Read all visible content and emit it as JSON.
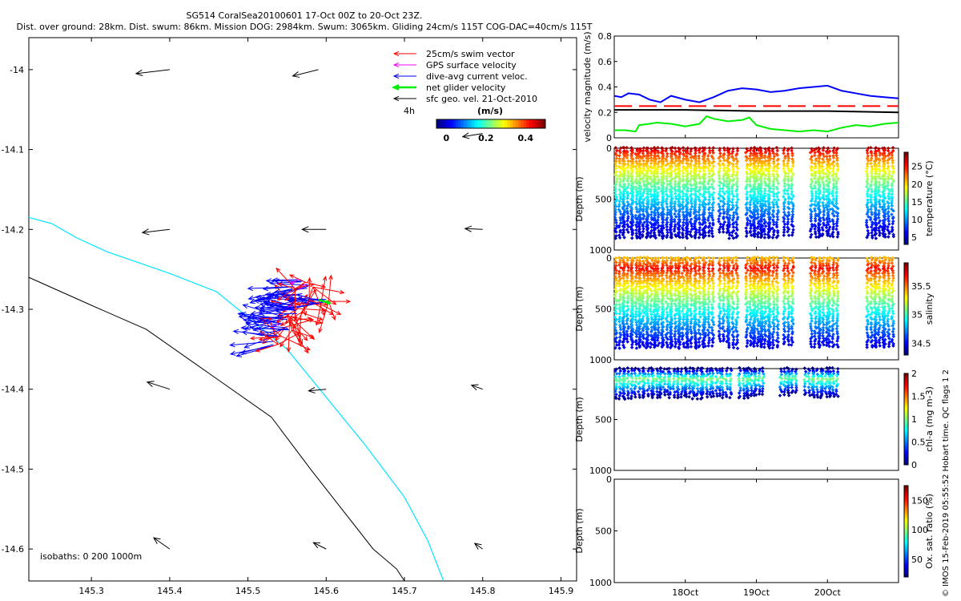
{
  "title": {
    "line1": "SG514 CoralSea20100601 17-Oct 00Z to 20-Oct 23Z.",
    "line2": "Dist. over ground: 28km. Dist. swum: 86km. Mission DOG: 2984km. Swum: 3065km. Gliding 24cm/s 115T COG-DAC=40cm/s 115T"
  },
  "side_note": "© IMOS 15-Feb-2019 05:55:52 Hobart time. QC flags 1  2",
  "colors": {
    "swim": "#ff0000",
    "gps": "#ff00ff",
    "dac": "#0000ff",
    "net": "#00ee00",
    "geo": "#000000",
    "isobath_shallow": "#00e5ff",
    "isobath_deep": "#000000",
    "dog_dash": "#ff0000"
  },
  "chart_data": [
    {
      "type": "map-vectors",
      "name": "main-map",
      "xlim": [
        145.22,
        145.92
      ],
      "ylim": [
        -14.64,
        -13.96
      ],
      "xticks": [
        145.3,
        145.4,
        145.5,
        145.6,
        145.7,
        145.8,
        145.9
      ],
      "yticks": [
        -14.0,
        -14.1,
        -14.2,
        -14.3,
        -14.4,
        -14.5,
        -14.6
      ],
      "xticklabels": [
        "145.3",
        "145.4",
        "145.5",
        "145.6",
        "145.7",
        "145.8",
        "145.9"
      ],
      "yticklabels": [
        "-14",
        "-14.1",
        "-14.2",
        "-14.3",
        "-14.4",
        "-14.5",
        "-14.6"
      ],
      "legend": [
        {
          "label": "25cm/s swim vector",
          "color_key": "swim"
        },
        {
          "label": "GPS surface velocity",
          "color_key": "gps"
        },
        {
          "label": "dive-avg current veloc.",
          "color_key": "dac"
        },
        {
          "label": "net glider velocity",
          "color_key": "net"
        },
        {
          "label": "sfc geo. vel. 21-Oct-2010",
          "color_key": "geo"
        }
      ],
      "interval_label": "4h",
      "colorbar": {
        "label": "(m/s)",
        "ticks": [
          0,
          0.2,
          0.4
        ],
        "ticklabels": [
          "0",
          "0.2",
          "0.4"
        ],
        "range": [
          -0.05,
          0.5
        ]
      },
      "isobaths": {
        "label": "isobaths: 0   200  1000m",
        "shallow": {
          "lon": [
            145.22,
            145.25,
            145.28,
            145.32,
            145.4,
            145.46,
            145.5,
            145.55,
            145.6,
            145.65,
            145.7,
            145.73,
            145.75
          ],
          "lat": [
            -14.185,
            -14.193,
            -14.21,
            -14.228,
            -14.255,
            -14.278,
            -14.31,
            -14.35,
            -14.41,
            -14.47,
            -14.535,
            -14.59,
            -14.64
          ]
        },
        "deep": {
          "lon": [
            145.22,
            145.3,
            145.37,
            145.45,
            145.53,
            145.58,
            145.62,
            145.66,
            145.69,
            145.7
          ],
          "lat": [
            -14.26,
            -14.295,
            -14.325,
            -14.38,
            -14.435,
            -14.5,
            -14.55,
            -14.6,
            -14.625,
            -14.64
          ]
        }
      },
      "geo_vectors": [
        {
          "lon": 145.4,
          "lat": -14.0,
          "u": -0.042,
          "v": -0.005
        },
        {
          "lon": 145.59,
          "lat": -14.0,
          "u": -0.032,
          "v": -0.008
        },
        {
          "lon": 145.8,
          "lat": -14.08,
          "u": -0.025,
          "v": -0.004
        },
        {
          "lon": 145.4,
          "lat": -14.2,
          "u": -0.034,
          "v": -0.004
        },
        {
          "lon": 145.6,
          "lat": -14.2,
          "u": -0.03,
          "v": 0.0
        },
        {
          "lon": 145.8,
          "lat": -14.2,
          "u": -0.022,
          "v": 0.001
        },
        {
          "lon": 145.4,
          "lat": -14.4,
          "u": -0.028,
          "v": 0.009
        },
        {
          "lon": 145.6,
          "lat": -14.4,
          "u": -0.022,
          "v": -0.002
        },
        {
          "lon": 145.8,
          "lat": -14.4,
          "u": -0.014,
          "v": 0.005
        },
        {
          "lon": 145.4,
          "lat": -14.6,
          "u": -0.02,
          "v": 0.014
        },
        {
          "lon": 145.6,
          "lat": -14.6,
          "u": -0.016,
          "v": 0.008
        },
        {
          "lon": 145.8,
          "lat": -14.6,
          "u": -0.01,
          "v": 0.007
        }
      ],
      "track_points": [
        {
          "lon": 145.575,
          "lat": -14.268
        },
        {
          "lon": 145.56,
          "lat": -14.28
        },
        {
          "lon": 145.55,
          "lat": -14.292
        },
        {
          "lon": 145.545,
          "lat": -14.305
        },
        {
          "lon": 145.54,
          "lat": -14.318
        },
        {
          "lon": 145.535,
          "lat": -14.33
        },
        {
          "lon": 145.53,
          "lat": -14.34
        },
        {
          "lon": 145.545,
          "lat": -14.31
        },
        {
          "lon": 145.555,
          "lat": -14.295
        },
        {
          "lon": 145.57,
          "lat": -14.285
        },
        {
          "lon": 145.585,
          "lat": -14.29
        },
        {
          "lon": 145.595,
          "lat": -14.286
        },
        {
          "lon": 145.565,
          "lat": -14.262
        },
        {
          "lon": 145.552,
          "lat": -14.27
        },
        {
          "lon": 145.56,
          "lat": -14.3
        },
        {
          "lon": 145.548,
          "lat": -14.322
        }
      ]
    },
    {
      "type": "line",
      "name": "velocity-panel",
      "ylabel": "velocity magnitude (m/s)",
      "ylim": [
        0,
        0.8
      ],
      "yticks": [
        0,
        0.2,
        0.4,
        0.6,
        0.8
      ],
      "yticklabels": [
        "0",
        "0.2",
        "0.4",
        "0.6",
        "0.8"
      ],
      "xlim": [
        17.0,
        21.0
      ],
      "series": [
        {
          "name": "dive-avg current",
          "color_key": "dac",
          "x": [
            17.0,
            17.1,
            17.2,
            17.35,
            17.5,
            17.65,
            17.8,
            18.0,
            18.2,
            18.4,
            18.6,
            18.8,
            19.0,
            19.2,
            19.4,
            19.6,
            19.8,
            20.0,
            20.2,
            20.4,
            20.6,
            20.8,
            21.0
          ],
          "y": [
            0.33,
            0.32,
            0.35,
            0.34,
            0.3,
            0.28,
            0.33,
            0.3,
            0.28,
            0.32,
            0.37,
            0.39,
            0.38,
            0.36,
            0.37,
            0.39,
            0.4,
            0.41,
            0.37,
            0.35,
            0.33,
            0.32,
            0.31
          ]
        },
        {
          "name": "mission DOG speed",
          "color_key": "dog_dash",
          "x": [
            17.0,
            21.0
          ],
          "y": [
            0.25,
            0.25
          ]
        },
        {
          "name": "surface geostrophic",
          "color_key": "geo",
          "x": [
            17.0,
            18.0,
            19.0,
            20.0,
            21.0
          ],
          "y": [
            0.22,
            0.22,
            0.21,
            0.21,
            0.2
          ]
        },
        {
          "name": "net glider velocity",
          "color_key": "net",
          "x": [
            17.0,
            17.15,
            17.3,
            17.35,
            17.5,
            17.6,
            17.8,
            18.0,
            18.2,
            18.3,
            18.4,
            18.6,
            18.8,
            18.9,
            19.0,
            19.2,
            19.4,
            19.6,
            19.8,
            20.0,
            20.2,
            20.4,
            20.6,
            20.8,
            21.0
          ],
          "y": [
            0.06,
            0.06,
            0.05,
            0.1,
            0.11,
            0.12,
            0.11,
            0.09,
            0.11,
            0.17,
            0.15,
            0.13,
            0.14,
            0.16,
            0.1,
            0.07,
            0.06,
            0.05,
            0.06,
            0.05,
            0.08,
            0.1,
            0.09,
            0.11,
            0.12
          ]
        }
      ]
    },
    {
      "type": "scatter",
      "name": "temperature-panel",
      "ylabel": "Depth (m)",
      "ylim": [
        1000,
        0
      ],
      "yticks": [
        0,
        500,
        1000
      ],
      "colorbar": {
        "label": "temperature (°C)",
        "range": [
          3,
          29
        ],
        "ticks": [
          5,
          10,
          15,
          20,
          25
        ]
      },
      "value_top": 28,
      "value_bottom": 4.5
    },
    {
      "type": "scatter",
      "name": "salinity-panel",
      "ylabel": "Depth (m)",
      "ylim": [
        1000,
        0
      ],
      "yticks": [
        0,
        500,
        1000
      ],
      "colorbar": {
        "label": "salinity",
        "range": [
          34.3,
          35.9
        ],
        "ticks": [
          34.5,
          35,
          35.5
        ]
      },
      "value_top": 35.4,
      "value_mid": 35.7,
      "value_bottom": 34.45
    },
    {
      "type": "scatter",
      "name": "chla-panel",
      "ylabel": "Depth (m)",
      "ylim": [
        1000,
        0
      ],
      "yticks": [
        500,
        1000
      ],
      "colorbar": {
        "label": "chl-a (mg m-3)",
        "range": [
          0,
          2
        ],
        "ticks": [
          0,
          0.5,
          1,
          1.5,
          2
        ]
      },
      "value_top": 0.45,
      "value_bottom": 0.02
    },
    {
      "type": "scatter",
      "name": "oxygen-panel",
      "ylabel": "Depth (m)",
      "ylim": [
        1000,
        0
      ],
      "yticks": [
        0,
        500,
        1000
      ],
      "colorbar": {
        "label": "Ox. sat. ratio (%)",
        "range": [
          20,
          175
        ],
        "ticks": [
          50,
          100,
          150
        ]
      }
    },
    {
      "type": "time-axis",
      "name": "shared-time",
      "xlim": [
        17.0,
        21.0
      ],
      "ticks": [
        18.0,
        19.0,
        20.0
      ],
      "ticklabels": [
        "18Oct",
        "19Oct",
        "20Oct"
      ],
      "dives": [
        {
          "t": 17.08,
          "depth": 880
        },
        {
          "t": 17.19,
          "depth": 820
        },
        {
          "t": 17.31,
          "depth": 880
        },
        {
          "t": 17.41,
          "depth": 870
        },
        {
          "t": 17.52,
          "depth": 880
        },
        {
          "t": 17.62,
          "depth": 860
        },
        {
          "t": 17.74,
          "depth": 880
        },
        {
          "t": 17.86,
          "depth": 870
        },
        {
          "t": 17.97,
          "depth": 880
        },
        {
          "t": 18.08,
          "depth": 870
        },
        {
          "t": 18.2,
          "depth": 880
        },
        {
          "t": 18.33,
          "depth": 860
        },
        {
          "t": 18.54,
          "depth": 820
        },
        {
          "t": 18.67,
          "depth": 880
        },
        {
          "t": 18.92,
          "depth": 860
        },
        {
          "t": 19.02,
          "depth": 870
        },
        {
          "t": 19.12,
          "depth": 870
        },
        {
          "t": 19.24,
          "depth": 880
        },
        {
          "t": 19.45,
          "depth": 850
        },
        {
          "t": 19.83,
          "depth": 870
        },
        {
          "t": 19.94,
          "depth": 860
        },
        {
          "t": 20.08,
          "depth": 870
        },
        {
          "t": 20.62,
          "depth": 880
        },
        {
          "t": 20.73,
          "depth": 860
        },
        {
          "t": 20.86,
          "depth": 870
        }
      ],
      "chla_dives": [
        {
          "t": 17.08,
          "depth": 300
        },
        {
          "t": 17.19,
          "depth": 290
        },
        {
          "t": 17.35,
          "depth": 280
        },
        {
          "t": 17.48,
          "depth": 270
        },
        {
          "t": 17.6,
          "depth": 280
        },
        {
          "t": 17.7,
          "depth": 260
        },
        {
          "t": 17.84,
          "depth": 280
        },
        {
          "t": 17.95,
          "depth": 280
        },
        {
          "t": 18.06,
          "depth": 270
        },
        {
          "t": 18.17,
          "depth": 290
        },
        {
          "t": 18.3,
          "depth": 280
        },
        {
          "t": 18.44,
          "depth": 270
        },
        {
          "t": 18.58,
          "depth": 280
        },
        {
          "t": 18.82,
          "depth": 290
        },
        {
          "t": 18.92,
          "depth": 270
        },
        {
          "t": 19.04,
          "depth": 250
        },
        {
          "t": 19.4,
          "depth": 260
        },
        {
          "t": 19.5,
          "depth": 240
        },
        {
          "t": 19.74,
          "depth": 260
        },
        {
          "t": 19.86,
          "depth": 280
        },
        {
          "t": 19.98,
          "depth": 270
        },
        {
          "t": 20.08,
          "depth": 280
        }
      ]
    }
  ]
}
